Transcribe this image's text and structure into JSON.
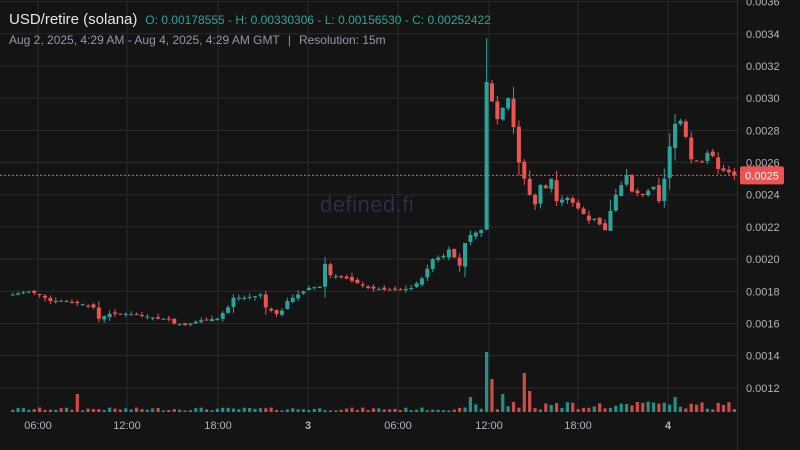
{
  "header": {
    "symbol": "USD/retire (solana)",
    "ohlc": "O: 0.00178555 - H: 0.00330306 - L: 0.00156530 - C: 0.00252422",
    "range": "Aug 2, 2025, 4:29 AM - Aug 4, 2025, 4:29 AM GMT",
    "separator": "|",
    "resolution": "Resolution: 15m"
  },
  "watermark": "defined.fi",
  "last_price_label": "0.0025",
  "colors": {
    "up": "#26a69a",
    "down": "#ef5350",
    "background": "#141414",
    "grid": "#2a2a2a"
  },
  "chart_data": {
    "type": "candlestick",
    "y_ticks": [
      "0.0012",
      "0.0014",
      "0.0016",
      "0.0018",
      "0.0020",
      "0.0022",
      "0.0024",
      "0.0026",
      "0.0028",
      "0.0030",
      "0.0032",
      "0.0034",
      "0.0036"
    ],
    "x_ticks": [
      "06:00",
      "12:00",
      "18:00",
      "3",
      "06:00",
      "12:00",
      "18:00",
      "4"
    ],
    "ylim": [
      0.00105,
      0.00361
    ],
    "last_close": 0.00252,
    "close_path": [
      [
        0,
        0.00178
      ],
      [
        3,
        0.0018
      ],
      [
        5,
        0.00178
      ],
      [
        7,
        0.00174
      ],
      [
        10,
        0.00174
      ],
      [
        13,
        0.00172
      ],
      [
        15,
        0.0017
      ],
      [
        16,
        0.00163
      ],
      [
        18,
        0.00166
      ],
      [
        21,
        0.00166
      ],
      [
        24,
        0.00165
      ],
      [
        27,
        0.00163
      ],
      [
        29,
        0.00163
      ],
      [
        30,
        0.0016
      ],
      [
        32,
        0.00159
      ],
      [
        35,
        0.00162
      ],
      [
        38,
        0.00163
      ],
      [
        40,
        0.0017
      ],
      [
        41,
        0.00176
      ],
      [
        43,
        0.00176
      ],
      [
        45,
        0.00177
      ],
      [
        46,
        0.00178
      ],
      [
        47,
        0.0017
      ],
      [
        48,
        0.00168
      ],
      [
        49,
        0.00166
      ],
      [
        50,
        0.00168
      ],
      [
        51,
        0.00174
      ],
      [
        53,
        0.00178
      ],
      [
        55,
        0.00182
      ],
      [
        57,
        0.00183
      ],
      [
        58,
        0.00197
      ],
      [
        59,
        0.0019
      ],
      [
        62,
        0.00188
      ],
      [
        64,
        0.00185
      ],
      [
        66,
        0.00182
      ],
      [
        69,
        0.00181
      ],
      [
        72,
        0.00181
      ],
      [
        74,
        0.00182
      ],
      [
        76,
        0.00188
      ],
      [
        78,
        0.002
      ],
      [
        80,
        0.00202
      ],
      [
        81,
        0.00206
      ],
      [
        83,
        0.00196
      ],
      [
        84,
        0.0021
      ],
      [
        85,
        0.00215
      ],
      [
        87,
        0.00218
      ],
      [
        88,
        0.0031
      ],
      [
        89,
        0.00298
      ],
      [
        90,
        0.00287
      ],
      [
        91,
        0.00294
      ],
      [
        92,
        0.003
      ],
      [
        93,
        0.00282
      ],
      [
        94,
        0.0026
      ],
      [
        95,
        0.0025
      ],
      [
        96,
        0.0024
      ],
      [
        97,
        0.00234
      ],
      [
        98,
        0.00246
      ],
      [
        99,
        0.00244
      ],
      [
        100,
        0.0025
      ],
      [
        101,
        0.00236
      ],
      [
        103,
        0.00238
      ],
      [
        104,
        0.00235
      ],
      [
        106,
        0.00228
      ],
      [
        107,
        0.00224
      ],
      [
        108,
        0.00225
      ],
      [
        110,
        0.00218
      ],
      [
        111,
        0.0023
      ],
      [
        112,
        0.0024
      ],
      [
        113,
        0.00246
      ],
      [
        114,
        0.00252
      ],
      [
        115,
        0.00242
      ],
      [
        117,
        0.0024
      ],
      [
        119,
        0.00245
      ],
      [
        120,
        0.00236
      ],
      [
        121,
        0.0025
      ],
      [
        122,
        0.0027
      ],
      [
        123,
        0.00284
      ],
      [
        124,
        0.00286
      ],
      [
        125,
        0.00276
      ],
      [
        126,
        0.00262
      ],
      [
        128,
        0.0026
      ],
      [
        129,
        0.00266
      ],
      [
        130,
        0.00264
      ],
      [
        131,
        0.00256
      ],
      [
        133,
        0.00254
      ],
      [
        134,
        0.00252
      ]
    ],
    "volume_spikes": [
      [
        12,
        0.3
      ],
      [
        88,
        1.0
      ],
      [
        89,
        0.55
      ],
      [
        95,
        0.65
      ],
      [
        96,
        0.35
      ],
      [
        91,
        0.3
      ],
      [
        85,
        0.25
      ],
      [
        123,
        0.25
      ]
    ]
  }
}
